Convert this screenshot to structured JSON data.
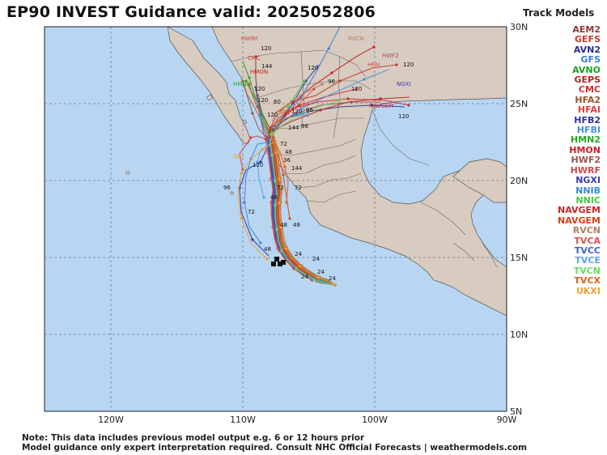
{
  "title": "EP90 INVEST Guidance valid: 2025052806",
  "legend": {
    "title": "Track Models",
    "items": [
      {
        "name": "AEM2",
        "color": "#8b3a3a"
      },
      {
        "name": "GEFS",
        "color": "#c0392b"
      },
      {
        "name": "AVN2",
        "color": "#2b2b9b"
      },
      {
        "name": "GFS",
        "color": "#3a7bd5"
      },
      {
        "name": "AVNO",
        "color": "#1e9e1e"
      },
      {
        "name": "GEPS",
        "color": "#b22222"
      },
      {
        "name": "CMC",
        "color": "#d32f2f"
      },
      {
        "name": "HFA2",
        "color": "#a0522d"
      },
      {
        "name": "HFAI",
        "color": "#e04040"
      },
      {
        "name": "HFB2",
        "color": "#3030a0"
      },
      {
        "name": "HFBI",
        "color": "#4a90e2"
      },
      {
        "name": "HMN2",
        "color": "#22aa22"
      },
      {
        "name": "HMON",
        "color": "#cc1f1f"
      },
      {
        "name": "HWF2",
        "color": "#a05050"
      },
      {
        "name": "HWRF",
        "color": "#d14a4a"
      },
      {
        "name": "NGXI",
        "color": "#3a3ab0"
      },
      {
        "name": "NNIB",
        "color": "#3a8ad6"
      },
      {
        "name": "NNIC",
        "color": "#44cc44"
      },
      {
        "name": "NAVGEM",
        "color": "#c62828"
      },
      {
        "name": "NAVGEM",
        "color": "#d84315"
      },
      {
        "name": "RVCN",
        "color": "#b08060"
      },
      {
        "name": "TVCA",
        "color": "#e05050"
      },
      {
        "name": "TVCC",
        "color": "#4060d0"
      },
      {
        "name": "TVCE",
        "color": "#60a0e0"
      },
      {
        "name": "TVCN",
        "color": "#66dd66"
      },
      {
        "name": "TVCX",
        "color": "#e0601a"
      },
      {
        "name": "UKXI",
        "color": "#f0a030"
      }
    ]
  },
  "axes": {
    "lon_labels": [
      "120W",
      "110W",
      "100W",
      "90W"
    ],
    "lat_labels": [
      "30N",
      "25N",
      "20N",
      "15N",
      "10N",
      "5N"
    ]
  },
  "colors": {
    "ocean": "#b8d6f2",
    "land": "#d8cbbf",
    "grid": "#6f7f96"
  },
  "map_labels": [
    "HWRF",
    "CMC",
    "HMON",
    "HMN2",
    "GEF",
    "RVCN",
    "HWF2",
    "HFAI",
    "NGXI",
    "NAVGEM"
  ],
  "time_labels": [
    "120",
    "144",
    "96",
    "72",
    "48",
    "24",
    "36",
    "60"
  ],
  "notes": {
    "line1": "Note: This data includes previous model output e.g. 6 or 12 hours prior",
    "line2": "Model guidance only expert interpretation required. Consult NHC Official Forecasts | weathermodels.com"
  }
}
